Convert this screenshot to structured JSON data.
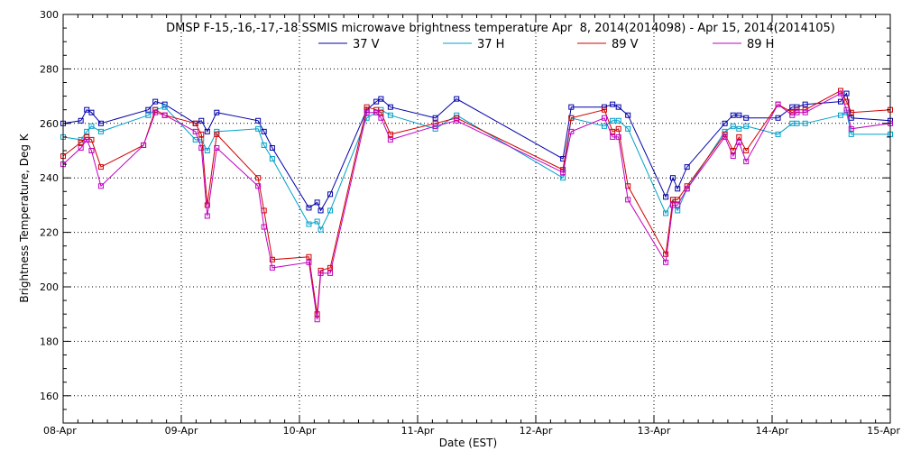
{
  "chart_data": {
    "type": "line",
    "title": "DMSP F-15,-16,-17,-18 SSMIS microwave brightness temperature Apr  8, 2014(2014098) - Apr 15, 2014(2014105)",
    "xlabel": "Date (EST)",
    "ylabel": "Brightness Temperature, Deg K",
    "xlim": [
      0,
      7
    ],
    "ylim": [
      150,
      300
    ],
    "x_ticks": [
      {
        "value": 0,
        "label": "08-Apr"
      },
      {
        "value": 1,
        "label": "09-Apr"
      },
      {
        "value": 2,
        "label": "10-Apr"
      },
      {
        "value": 3,
        "label": "11-Apr"
      },
      {
        "value": 4,
        "label": "12-Apr"
      },
      {
        "value": 5,
        "label": "13-Apr"
      },
      {
        "value": 6,
        "label": "14-Apr"
      },
      {
        "value": 7,
        "label": "15-Apr"
      }
    ],
    "y_ticks": [
      160,
      180,
      200,
      220,
      240,
      260,
      280,
      300
    ],
    "grid": true,
    "legend_position": "top-center",
    "series": [
      {
        "name": "37 V",
        "color": "#0000a8",
        "points": [
          [
            0.0,
            260
          ],
          [
            0.15,
            261
          ],
          [
            0.2,
            265
          ],
          [
            0.24,
            264
          ],
          [
            0.32,
            260
          ],
          [
            0.72,
            265
          ],
          [
            0.78,
            268
          ],
          [
            0.86,
            267
          ],
          [
            1.12,
            260
          ],
          [
            1.17,
            261
          ],
          [
            1.22,
            257
          ],
          [
            1.3,
            264
          ],
          [
            1.65,
            261
          ],
          [
            1.7,
            257
          ],
          [
            1.77,
            251
          ],
          [
            2.08,
            229
          ],
          [
            2.15,
            231
          ],
          [
            2.18,
            228
          ],
          [
            2.26,
            234
          ],
          [
            2.57,
            265
          ],
          [
            2.65,
            268
          ],
          [
            2.69,
            269
          ],
          [
            2.77,
            266
          ],
          [
            3.15,
            262
          ],
          [
            3.33,
            269
          ],
          [
            4.23,
            247
          ],
          [
            4.3,
            266
          ],
          [
            4.58,
            266
          ],
          [
            4.65,
            267
          ],
          [
            4.7,
            266
          ],
          [
            4.78,
            263
          ],
          [
            5.1,
            233
          ],
          [
            5.16,
            240
          ],
          [
            5.2,
            236
          ],
          [
            5.28,
            244
          ],
          [
            5.6,
            260
          ],
          [
            5.67,
            263
          ],
          [
            5.72,
            263
          ],
          [
            5.78,
            262
          ],
          [
            6.05,
            262
          ],
          [
            6.17,
            266
          ],
          [
            6.21,
            266
          ],
          [
            6.28,
            267
          ],
          [
            6.58,
            268
          ],
          [
            6.63,
            271
          ],
          [
            6.67,
            262
          ],
          [
            7.0,
            261
          ]
        ]
      },
      {
        "name": "37 H",
        "color": "#00a0c8",
        "points": [
          [
            0.0,
            255
          ],
          [
            0.15,
            254
          ],
          [
            0.2,
            257
          ],
          [
            0.24,
            259
          ],
          [
            0.32,
            257
          ],
          [
            0.72,
            263
          ],
          [
            0.78,
            265
          ],
          [
            0.86,
            266
          ],
          [
            1.12,
            254
          ],
          [
            1.17,
            254
          ],
          [
            1.22,
            250
          ],
          [
            1.3,
            257
          ],
          [
            1.65,
            258
          ],
          [
            1.7,
            252
          ],
          [
            1.77,
            247
          ],
          [
            2.08,
            223
          ],
          [
            2.15,
            224
          ],
          [
            2.18,
            221
          ],
          [
            2.26,
            228
          ],
          [
            2.57,
            262
          ],
          [
            2.65,
            264
          ],
          [
            2.69,
            265
          ],
          [
            2.77,
            263
          ],
          [
            3.15,
            258
          ],
          [
            3.33,
            263
          ],
          [
            4.23,
            240
          ],
          [
            4.3,
            262
          ],
          [
            4.58,
            259
          ],
          [
            4.65,
            261
          ],
          [
            4.7,
            261
          ],
          [
            4.78,
            258
          ],
          [
            5.1,
            227
          ],
          [
            5.16,
            232
          ],
          [
            5.2,
            228
          ],
          [
            5.28,
            236
          ],
          [
            5.6,
            257
          ],
          [
            5.67,
            259
          ],
          [
            5.72,
            258
          ],
          [
            5.78,
            259
          ],
          [
            6.05,
            256
          ],
          [
            6.17,
            260
          ],
          [
            6.21,
            260
          ],
          [
            6.28,
            260
          ],
          [
            6.58,
            263
          ],
          [
            6.63,
            264
          ],
          [
            6.67,
            256
          ],
          [
            7.0,
            256
          ]
        ]
      },
      {
        "name": "89 V",
        "color": "#d00000",
        "points": [
          [
            0.0,
            248
          ],
          [
            0.15,
            253
          ],
          [
            0.2,
            255
          ],
          [
            0.24,
            254
          ],
          [
            0.32,
            244
          ],
          [
            0.68,
            252
          ],
          [
            0.78,
            265
          ],
          [
            0.86,
            263
          ],
          [
            1.12,
            260
          ],
          [
            1.17,
            256
          ],
          [
            1.22,
            230
          ],
          [
            1.3,
            256
          ],
          [
            1.65,
            240
          ],
          [
            1.7,
            228
          ],
          [
            1.77,
            210
          ],
          [
            2.08,
            211
          ],
          [
            2.15,
            190
          ],
          [
            2.18,
            206
          ],
          [
            2.26,
            207
          ],
          [
            2.57,
            266
          ],
          [
            2.65,
            265
          ],
          [
            2.69,
            264
          ],
          [
            2.77,
            256
          ],
          [
            3.15,
            260
          ],
          [
            3.33,
            262
          ],
          [
            4.23,
            243
          ],
          [
            4.3,
            262
          ],
          [
            4.58,
            265
          ],
          [
            4.65,
            257
          ],
          [
            4.7,
            258
          ],
          [
            4.78,
            237
          ],
          [
            5.1,
            212
          ],
          [
            5.16,
            232
          ],
          [
            5.2,
            232
          ],
          [
            5.28,
            237
          ],
          [
            5.6,
            256
          ],
          [
            5.67,
            250
          ],
          [
            5.72,
            255
          ],
          [
            5.78,
            250
          ],
          [
            6.05,
            267
          ],
          [
            6.17,
            264
          ],
          [
            6.21,
            265
          ],
          [
            6.28,
            265
          ],
          [
            6.58,
            272
          ],
          [
            6.63,
            268
          ],
          [
            6.67,
            264
          ],
          [
            7.0,
            265
          ]
        ]
      },
      {
        "name": "89 H",
        "color": "#c000c0",
        "points": [
          [
            0.0,
            245
          ],
          [
            0.15,
            251
          ],
          [
            0.2,
            254
          ],
          [
            0.24,
            250
          ],
          [
            0.32,
            237
          ],
          [
            0.68,
            252
          ],
          [
            0.78,
            264
          ],
          [
            0.86,
            263
          ],
          [
            1.12,
            257
          ],
          [
            1.17,
            251
          ],
          [
            1.22,
            226
          ],
          [
            1.3,
            251
          ],
          [
            1.65,
            237
          ],
          [
            1.7,
            222
          ],
          [
            1.77,
            207
          ],
          [
            2.08,
            209
          ],
          [
            2.15,
            188
          ],
          [
            2.18,
            205
          ],
          [
            2.26,
            205
          ],
          [
            2.57,
            264
          ],
          [
            2.65,
            264
          ],
          [
            2.69,
            262
          ],
          [
            2.77,
            254
          ],
          [
            3.15,
            259
          ],
          [
            3.33,
            261
          ],
          [
            4.23,
            242
          ],
          [
            4.3,
            257
          ],
          [
            4.58,
            262
          ],
          [
            4.65,
            255
          ],
          [
            4.7,
            255
          ],
          [
            4.78,
            232
          ],
          [
            5.1,
            209
          ],
          [
            5.16,
            230
          ],
          [
            5.2,
            230
          ],
          [
            5.28,
            236
          ],
          [
            5.6,
            255
          ],
          [
            5.67,
            248
          ],
          [
            5.72,
            253
          ],
          [
            5.78,
            246
          ],
          [
            6.05,
            267
          ],
          [
            6.17,
            263
          ],
          [
            6.21,
            264
          ],
          [
            6.28,
            264
          ],
          [
            6.58,
            271
          ],
          [
            6.63,
            265
          ],
          [
            6.67,
            258
          ],
          [
            7.0,
            260
          ]
        ]
      }
    ]
  }
}
